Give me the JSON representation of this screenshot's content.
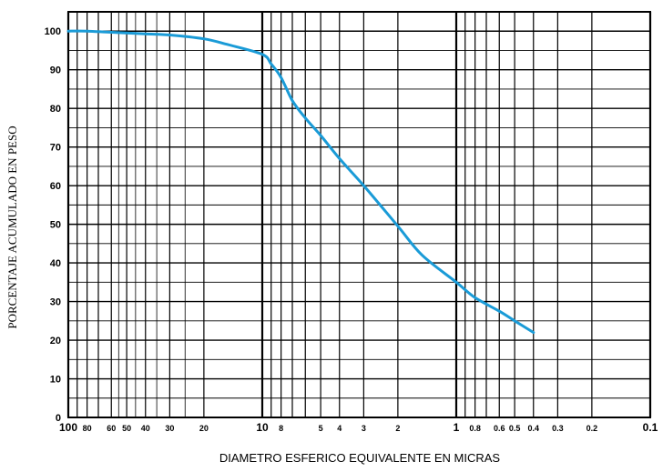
{
  "chart_data": {
    "type": "line",
    "title": "",
    "xlabel": "DIAMETRO ESFERICO EQUIVALENTE EN MICRAS",
    "ylabel": "PORCENTAJE ACUMULADO EN PESO",
    "x_scale": "log",
    "x_reversed": true,
    "xlim": [
      100,
      0.1
    ],
    "ylim": [
      0,
      105
    ],
    "grid": true,
    "color": "#1a9bd7",
    "x_ticks": [
      {
        "value": 100,
        "label": "100",
        "major": true
      },
      {
        "value": 80,
        "label": "80"
      },
      {
        "value": 60,
        "label": "60"
      },
      {
        "value": 50,
        "label": "50"
      },
      {
        "value": 40,
        "label": "40"
      },
      {
        "value": 30,
        "label": "30"
      },
      {
        "value": 20,
        "label": "20"
      },
      {
        "value": 10,
        "label": "10",
        "major": true
      },
      {
        "value": 8,
        "label": "8"
      },
      {
        "value": 5,
        "label": "5"
      },
      {
        "value": 4,
        "label": "4"
      },
      {
        "value": 3,
        "label": "3"
      },
      {
        "value": 2,
        "label": "2"
      },
      {
        "value": 1,
        "label": "1",
        "major": true
      },
      {
        "value": 0.8,
        "label": "0.8"
      },
      {
        "value": 0.6,
        "label": "0.6"
      },
      {
        "value": 0.5,
        "label": "0.5"
      },
      {
        "value": 0.4,
        "label": "0.4"
      },
      {
        "value": 0.3,
        "label": "0.3"
      },
      {
        "value": 0.2,
        "label": "0.2"
      },
      {
        "value": 0.1,
        "label": "0.1",
        "major": true
      }
    ],
    "y_ticks": [
      0,
      10,
      20,
      30,
      40,
      50,
      60,
      70,
      80,
      90,
      100
    ],
    "x": [
      100,
      80,
      60,
      40,
      30,
      20,
      15,
      10,
      9,
      8,
      7,
      6,
      5,
      4,
      3,
      2,
      1.5,
      1,
      0.8,
      0.6,
      0.5,
      0.4
    ],
    "y": [
      100,
      100,
      99.7,
      99.3,
      99,
      98,
      96.5,
      94,
      91.5,
      88,
      82,
      77.5,
      73,
      67,
      60,
      49.5,
      42,
      35,
      31,
      27.5,
      25,
      22
    ]
  }
}
